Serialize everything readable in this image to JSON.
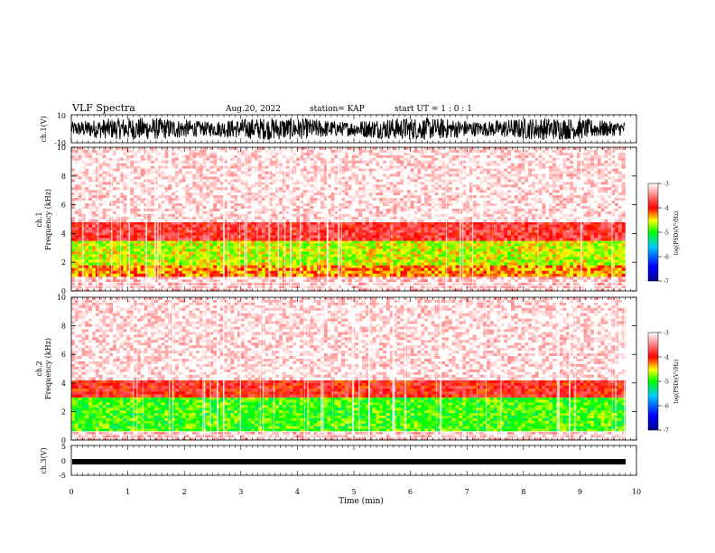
{
  "header": {
    "title": "VLF Spectra",
    "date": "Aug.20, 2022",
    "station": "station= KAP",
    "start": "start  UT =   1 : 0  : 1"
  },
  "colors": {
    "spectrogram_scale": [
      "#00008b",
      "#0000ff",
      "#00c8ff",
      "#00ff00",
      "#ffff00",
      "#ff0000",
      "#ffffff"
    ],
    "waveform": "#000000"
  },
  "chart_data": [
    {
      "type": "line",
      "panel": "ch1-waveform",
      "ylabel": "ch.1(V)",
      "ylim": [
        -10,
        10
      ],
      "yticks": [
        "10",
        "-10"
      ],
      "xlim": [
        0,
        10
      ],
      "description_of_values": "dense noisy waveform spanning roughly -8 to +9 V across 0 to ~9.8 min"
    },
    {
      "type": "heatmap",
      "panel": "ch1-spectrogram",
      "ylabel": "ch.1\nFrequency (kHz)",
      "ylabel_line1": "ch.1",
      "ylabel_line2": "Frequency  (kHz)",
      "ylim": [
        0,
        10
      ],
      "yticks": [
        "0",
        "2",
        "4",
        "6",
        "8",
        "10"
      ],
      "xlim": [
        0,
        9.8
      ],
      "bands": [
        {
          "from_khz": 0.0,
          "to_khz": 1.0,
          "level": -3.2
        },
        {
          "from_khz": 1.0,
          "to_khz": 1.8,
          "level": -4.3
        },
        {
          "from_khz": 1.8,
          "to_khz": 3.5,
          "level": -4.6
        },
        {
          "from_khz": 3.5,
          "to_khz": 4.8,
          "level": -3.8
        },
        {
          "from_khz": 4.8,
          "to_khz": 10.0,
          "level": -3.1
        }
      ],
      "colorbar": {
        "label": "log(PSD)(V²/Hz)",
        "ticks": [
          "-3",
          "-4",
          "-5",
          "-6",
          "-7"
        ],
        "range": [
          -7,
          -3
        ]
      }
    },
    {
      "type": "heatmap",
      "panel": "ch2-spectrogram",
      "ylabel_line1": "ch.2",
      "ylabel_line2": "Frequency  (kHz)",
      "ylim": [
        0,
        10
      ],
      "yticks": [
        "0",
        "2",
        "4",
        "6",
        "8",
        "10"
      ],
      "xlim": [
        0,
        9.8
      ],
      "bands": [
        {
          "from_khz": 0.0,
          "to_khz": 0.6,
          "level": -3.2
        },
        {
          "from_khz": 0.6,
          "to_khz": 3.0,
          "level": -4.9
        },
        {
          "from_khz": 3.0,
          "to_khz": 4.2,
          "level": -3.9
        },
        {
          "from_khz": 4.2,
          "to_khz": 10.0,
          "level": -3.1
        }
      ],
      "colorbar": {
        "label": "log(PSD)(V²/Hz)",
        "ticks": [
          "-3",
          "-4",
          "-5",
          "-6",
          "-7"
        ],
        "range": [
          -7,
          -3
        ]
      }
    },
    {
      "type": "line",
      "panel": "ch3-waveform",
      "ylabel": "ch.3(V)",
      "ylim": [
        -5,
        5
      ],
      "yticks": [
        "5",
        "0",
        "-5"
      ],
      "xlim": [
        0,
        10
      ],
      "description_of_values": "thin band near -1 V from 0 to ~9.8 min"
    }
  ],
  "xaxis": {
    "label": "Time  (min)",
    "ticks": [
      "0",
      "1",
      "2",
      "3",
      "4",
      "5",
      "6",
      "7",
      "8",
      "9",
      "10"
    ],
    "range": [
      0,
      10
    ]
  }
}
